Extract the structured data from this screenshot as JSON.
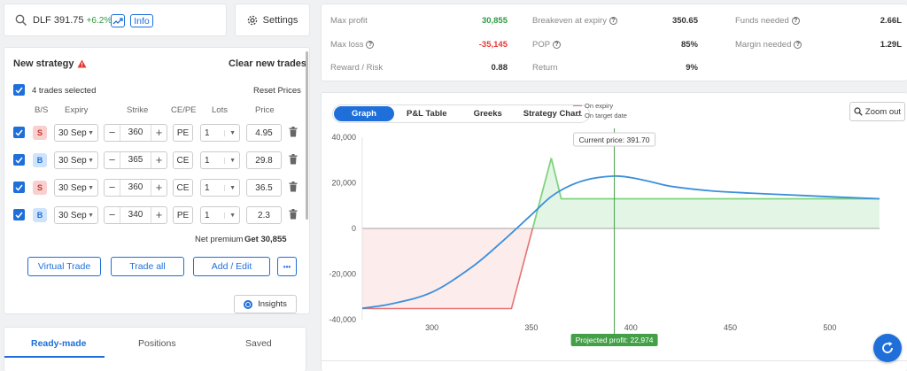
{
  "search": {
    "symbol": "DLF",
    "price": "391.75",
    "change": "+6.2%",
    "info_label": "Info"
  },
  "settings_label": "Settings",
  "strategy": {
    "title": "New strategy",
    "clear_label": "Clear new trades",
    "trades_selected": "4 trades selected",
    "reset_label": "Reset Prices",
    "headers": [
      "B/S",
      "Expiry",
      "Strike",
      "CE/PE",
      "Lots",
      "Price"
    ],
    "trades": [
      {
        "side": "S",
        "expiry": "30 Sep",
        "strike": "360",
        "type": "PE",
        "lots": "1",
        "price": "4.95"
      },
      {
        "side": "B",
        "expiry": "30 Sep",
        "strike": "365",
        "type": "CE",
        "lots": "1",
        "price": "29.8"
      },
      {
        "side": "S",
        "expiry": "30 Sep",
        "strike": "360",
        "type": "CE",
        "lots": "1",
        "price": "36.5"
      },
      {
        "side": "B",
        "expiry": "30 Sep",
        "strike": "340",
        "type": "PE",
        "lots": "1",
        "price": "2.3"
      }
    ],
    "net_premium_label": "Net premium",
    "net_premium_value": "Get 30,855",
    "virtual_trade": "Virtual Trade",
    "trade_all": "Trade all",
    "add_edit": "Add / Edit",
    "more": "•••",
    "insights": "Insights"
  },
  "bottom_tabs": [
    "Ready-made",
    "Positions",
    "Saved"
  ],
  "metrics": {
    "max_profit_label": "Max profit",
    "max_profit": "30,855",
    "max_loss_label": "Max loss",
    "max_loss": "-35,145",
    "reward_risk_label": "Reward / Risk",
    "reward_risk": "0.88",
    "breakeven_label": "Breakeven at expiry",
    "breakeven": "350.65",
    "pop_label": "POP",
    "pop": "85%",
    "return_label": "Return",
    "return": "9%",
    "funds_label": "Funds needed",
    "funds": "2.66L",
    "margin_label": "Margin needed",
    "margin": "1.29L"
  },
  "chart_tabs": [
    "Graph",
    "P&L Table",
    "Greeks",
    "Strategy Chart"
  ],
  "zoom_label": "Zoom out",
  "chart_data": {
    "type": "line",
    "current_price_label": "Current price: 391.70",
    "current_price": 391.7,
    "projected_label": "Projected profit: 22,974",
    "xlim": [
      265,
      525
    ],
    "ylim": [
      -40000,
      40000
    ],
    "xticks": [
      300,
      350,
      400,
      450,
      500
    ],
    "yticks": [
      40000,
      20000,
      0,
      -20000,
      -40000
    ],
    "ytick_labels": [
      "40,000",
      "20,000",
      "0",
      "-20,000",
      "-40,000"
    ],
    "series": [
      {
        "name": "On expiry",
        "color": "#e57373",
        "x": [
          265,
          340,
          360,
          365,
          525
        ],
        "y": [
          -35145,
          -35145,
          30855,
          13000,
          13000
        ]
      },
      {
        "name": "On target date",
        "color": "#3a8fdc",
        "x": [
          265,
          280,
          300,
          320,
          335,
          350,
          360,
          370,
          380,
          391.7,
          400,
          410,
          420,
          440,
          460,
          480,
          500,
          525
        ],
        "y": [
          -35000,
          -33000,
          -28000,
          -17000,
          -6000,
          6000,
          14000,
          19000,
          21800,
          22974,
          22300,
          20500,
          18500,
          16500,
          15500,
          14700,
          13900,
          13000
        ]
      }
    ],
    "colors": {
      "profit_fill": "#e3f6e5",
      "loss_fill": "#fdecec",
      "vline": "#43a047"
    }
  }
}
